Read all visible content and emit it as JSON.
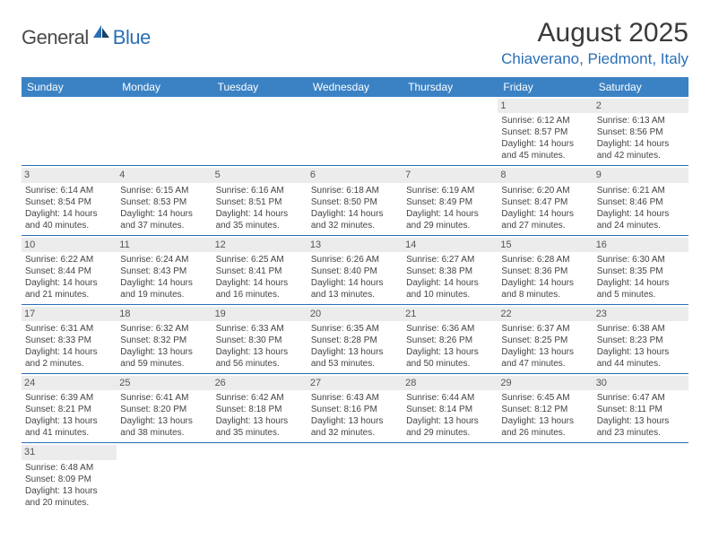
{
  "brand": {
    "general": "General",
    "blue": "Blue"
  },
  "title": "August 2025",
  "location": "Chiaverano, Piedmont, Italy",
  "day_headers": [
    "Sunday",
    "Monday",
    "Tuesday",
    "Wednesday",
    "Thursday",
    "Friday",
    "Saturday"
  ],
  "colors": {
    "header_bg": "#3b82c4",
    "accent": "#2a6fb5",
    "daynum_bg": "#ececec"
  },
  "weeks": [
    [
      null,
      null,
      null,
      null,
      null,
      {
        "n": "1",
        "sr": "Sunrise: 6:12 AM",
        "ss": "Sunset: 8:57 PM",
        "dl1": "Daylight: 14 hours",
        "dl2": "and 45 minutes."
      },
      {
        "n": "2",
        "sr": "Sunrise: 6:13 AM",
        "ss": "Sunset: 8:56 PM",
        "dl1": "Daylight: 14 hours",
        "dl2": "and 42 minutes."
      }
    ],
    [
      {
        "n": "3",
        "sr": "Sunrise: 6:14 AM",
        "ss": "Sunset: 8:54 PM",
        "dl1": "Daylight: 14 hours",
        "dl2": "and 40 minutes."
      },
      {
        "n": "4",
        "sr": "Sunrise: 6:15 AM",
        "ss": "Sunset: 8:53 PM",
        "dl1": "Daylight: 14 hours",
        "dl2": "and 37 minutes."
      },
      {
        "n": "5",
        "sr": "Sunrise: 6:16 AM",
        "ss": "Sunset: 8:51 PM",
        "dl1": "Daylight: 14 hours",
        "dl2": "and 35 minutes."
      },
      {
        "n": "6",
        "sr": "Sunrise: 6:18 AM",
        "ss": "Sunset: 8:50 PM",
        "dl1": "Daylight: 14 hours",
        "dl2": "and 32 minutes."
      },
      {
        "n": "7",
        "sr": "Sunrise: 6:19 AM",
        "ss": "Sunset: 8:49 PM",
        "dl1": "Daylight: 14 hours",
        "dl2": "and 29 minutes."
      },
      {
        "n": "8",
        "sr": "Sunrise: 6:20 AM",
        "ss": "Sunset: 8:47 PM",
        "dl1": "Daylight: 14 hours",
        "dl2": "and 27 minutes."
      },
      {
        "n": "9",
        "sr": "Sunrise: 6:21 AM",
        "ss": "Sunset: 8:46 PM",
        "dl1": "Daylight: 14 hours",
        "dl2": "and 24 minutes."
      }
    ],
    [
      {
        "n": "10",
        "sr": "Sunrise: 6:22 AM",
        "ss": "Sunset: 8:44 PM",
        "dl1": "Daylight: 14 hours",
        "dl2": "and 21 minutes."
      },
      {
        "n": "11",
        "sr": "Sunrise: 6:24 AM",
        "ss": "Sunset: 8:43 PM",
        "dl1": "Daylight: 14 hours",
        "dl2": "and 19 minutes."
      },
      {
        "n": "12",
        "sr": "Sunrise: 6:25 AM",
        "ss": "Sunset: 8:41 PM",
        "dl1": "Daylight: 14 hours",
        "dl2": "and 16 minutes."
      },
      {
        "n": "13",
        "sr": "Sunrise: 6:26 AM",
        "ss": "Sunset: 8:40 PM",
        "dl1": "Daylight: 14 hours",
        "dl2": "and 13 minutes."
      },
      {
        "n": "14",
        "sr": "Sunrise: 6:27 AM",
        "ss": "Sunset: 8:38 PM",
        "dl1": "Daylight: 14 hours",
        "dl2": "and 10 minutes."
      },
      {
        "n": "15",
        "sr": "Sunrise: 6:28 AM",
        "ss": "Sunset: 8:36 PM",
        "dl1": "Daylight: 14 hours",
        "dl2": "and 8 minutes."
      },
      {
        "n": "16",
        "sr": "Sunrise: 6:30 AM",
        "ss": "Sunset: 8:35 PM",
        "dl1": "Daylight: 14 hours",
        "dl2": "and 5 minutes."
      }
    ],
    [
      {
        "n": "17",
        "sr": "Sunrise: 6:31 AM",
        "ss": "Sunset: 8:33 PM",
        "dl1": "Daylight: 14 hours",
        "dl2": "and 2 minutes."
      },
      {
        "n": "18",
        "sr": "Sunrise: 6:32 AM",
        "ss": "Sunset: 8:32 PM",
        "dl1": "Daylight: 13 hours",
        "dl2": "and 59 minutes."
      },
      {
        "n": "19",
        "sr": "Sunrise: 6:33 AM",
        "ss": "Sunset: 8:30 PM",
        "dl1": "Daylight: 13 hours",
        "dl2": "and 56 minutes."
      },
      {
        "n": "20",
        "sr": "Sunrise: 6:35 AM",
        "ss": "Sunset: 8:28 PM",
        "dl1": "Daylight: 13 hours",
        "dl2": "and 53 minutes."
      },
      {
        "n": "21",
        "sr": "Sunrise: 6:36 AM",
        "ss": "Sunset: 8:26 PM",
        "dl1": "Daylight: 13 hours",
        "dl2": "and 50 minutes."
      },
      {
        "n": "22",
        "sr": "Sunrise: 6:37 AM",
        "ss": "Sunset: 8:25 PM",
        "dl1": "Daylight: 13 hours",
        "dl2": "and 47 minutes."
      },
      {
        "n": "23",
        "sr": "Sunrise: 6:38 AM",
        "ss": "Sunset: 8:23 PM",
        "dl1": "Daylight: 13 hours",
        "dl2": "and 44 minutes."
      }
    ],
    [
      {
        "n": "24",
        "sr": "Sunrise: 6:39 AM",
        "ss": "Sunset: 8:21 PM",
        "dl1": "Daylight: 13 hours",
        "dl2": "and 41 minutes."
      },
      {
        "n": "25",
        "sr": "Sunrise: 6:41 AM",
        "ss": "Sunset: 8:20 PM",
        "dl1": "Daylight: 13 hours",
        "dl2": "and 38 minutes."
      },
      {
        "n": "26",
        "sr": "Sunrise: 6:42 AM",
        "ss": "Sunset: 8:18 PM",
        "dl1": "Daylight: 13 hours",
        "dl2": "and 35 minutes."
      },
      {
        "n": "27",
        "sr": "Sunrise: 6:43 AM",
        "ss": "Sunset: 8:16 PM",
        "dl1": "Daylight: 13 hours",
        "dl2": "and 32 minutes."
      },
      {
        "n": "28",
        "sr": "Sunrise: 6:44 AM",
        "ss": "Sunset: 8:14 PM",
        "dl1": "Daylight: 13 hours",
        "dl2": "and 29 minutes."
      },
      {
        "n": "29",
        "sr": "Sunrise: 6:45 AM",
        "ss": "Sunset: 8:12 PM",
        "dl1": "Daylight: 13 hours",
        "dl2": "and 26 minutes."
      },
      {
        "n": "30",
        "sr": "Sunrise: 6:47 AM",
        "ss": "Sunset: 8:11 PM",
        "dl1": "Daylight: 13 hours",
        "dl2": "and 23 minutes."
      }
    ],
    [
      {
        "n": "31",
        "sr": "Sunrise: 6:48 AM",
        "ss": "Sunset: 8:09 PM",
        "dl1": "Daylight: 13 hours",
        "dl2": "and 20 minutes."
      },
      null,
      null,
      null,
      null,
      null,
      null
    ]
  ]
}
